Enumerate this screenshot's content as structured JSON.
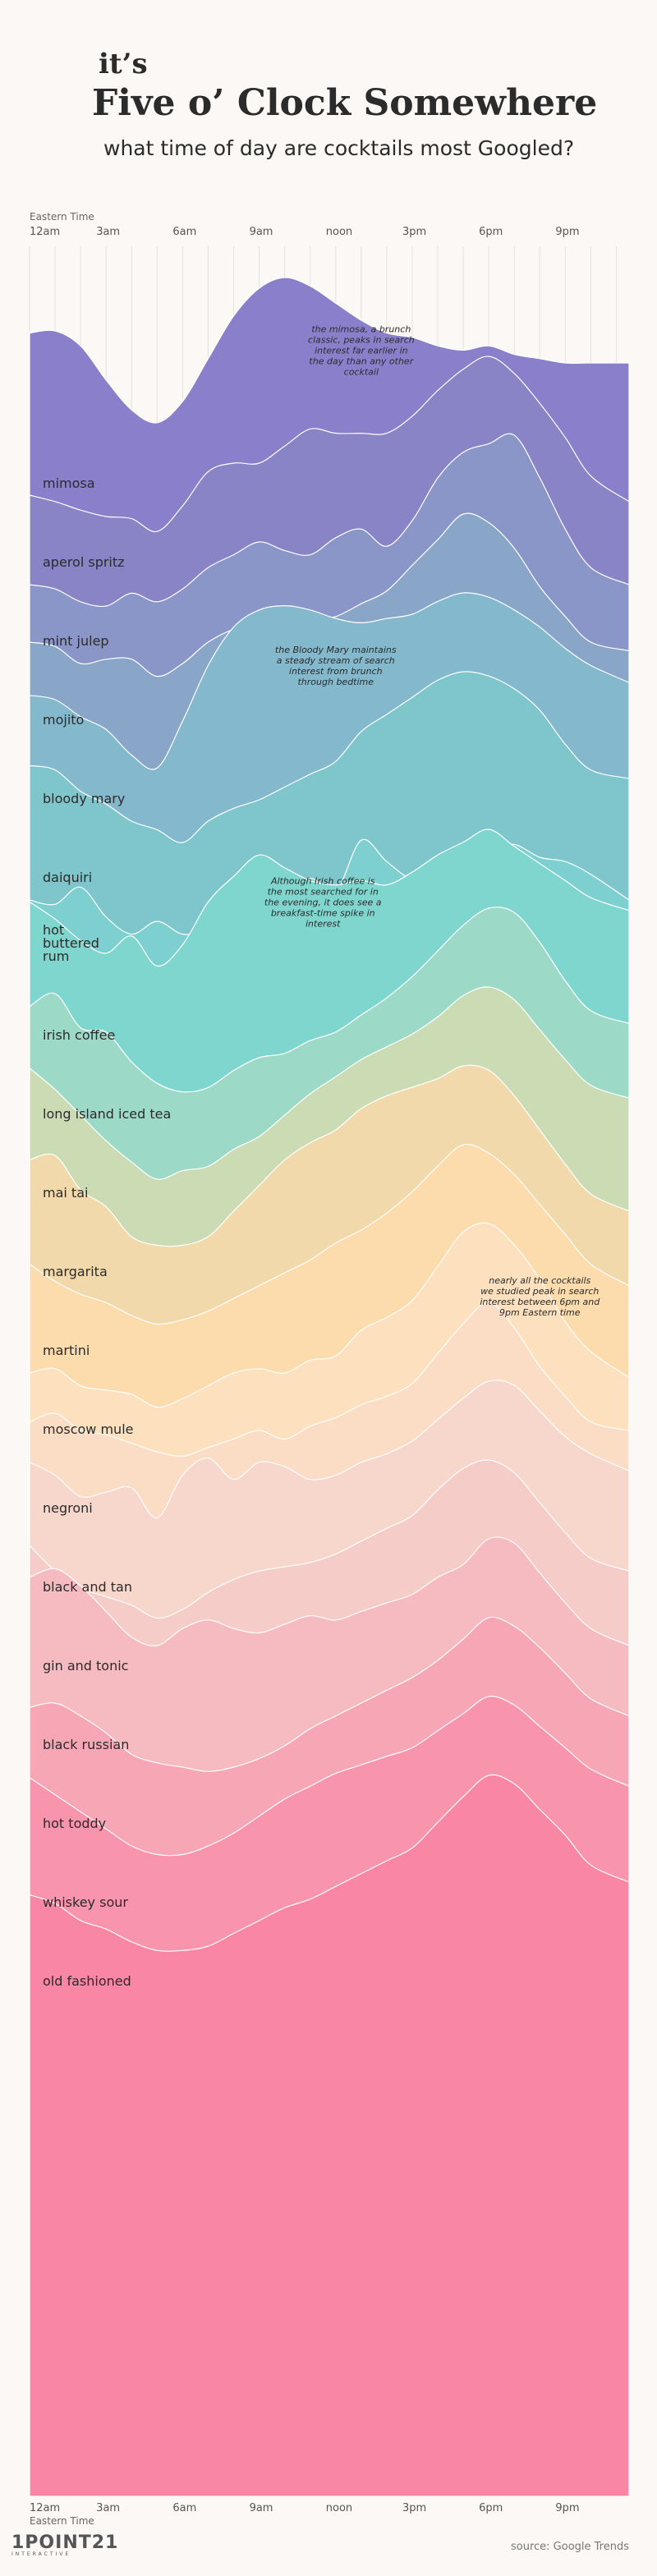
{
  "title_small": "it’s",
  "title_main": "Five o’ Clock Somewhere",
  "subtitle": "what time of day are cocktails most Googled?",
  "source": "source: Google Trends",
  "logo": {
    "text": "1POINT21",
    "tagline": "INTERACTIVE"
  },
  "colors": {
    "background": "#fbf8f6",
    "grid": "#e6e1dd",
    "text": "#2b2b2b"
  },
  "chart_data": {
    "type": "area",
    "style": "ridgeline",
    "x_axis_label": "Eastern Time",
    "x_ticks": [
      "12am",
      "3am",
      "6am",
      "9am",
      "noon",
      "3pm",
      "6pm",
      "9pm"
    ],
    "x_hours": [
      0,
      3,
      6,
      9,
      12,
      15,
      18,
      21
    ],
    "hours": [
      0,
      1,
      2,
      3,
      4,
      5,
      6,
      7,
      8,
      9,
      10,
      11,
      12,
      13,
      14,
      15,
      16,
      17,
      18,
      19,
      20,
      21,
      22,
      23
    ],
    "y_unit": "relative search interest (0-100)",
    "series": [
      {
        "name": "mimosa",
        "color": "#8a7fcb",
        "values": [
          74,
          75,
          68,
          52,
          38,
          32,
          42,
          62,
          82,
          95,
          100,
          96,
          88,
          80,
          74,
          72,
          68,
          66,
          68,
          64,
          62,
          60,
          60,
          60
        ]
      },
      {
        "name": "aperol spritz",
        "color": "#8884c6",
        "values": [
          35,
          32,
          28,
          25,
          24,
          18,
          30,
          46,
          50,
          50,
          58,
          66,
          64,
          64,
          64,
          72,
          84,
          94,
          100,
          92,
          78,
          62,
          44,
          32
        ]
      },
      {
        "name": "mint julep",
        "color": "#8a96c8",
        "values": [
          30,
          28,
          22,
          20,
          26,
          22,
          28,
          38,
          44,
          50,
          46,
          44,
          52,
          56,
          48,
          60,
          80,
          92,
          96,
          100,
          80,
          56,
          38,
          30
        ]
      },
      {
        "name": "mojito",
        "color": "#89a6c8",
        "values": [
          40,
          38,
          30,
          32,
          32,
          24,
          30,
          40,
          46,
          48,
          44,
          50,
          52,
          58,
          64,
          76,
          88,
          100,
          96,
          84,
          66,
          52,
          40,
          36
        ]
      },
      {
        "name": "bloody mary",
        "color": "#84b8cc",
        "values": [
          52,
          50,
          42,
          36,
          24,
          18,
          40,
          66,
          84,
          92,
          94,
          92,
          88,
          86,
          88,
          90,
          96,
          100,
          98,
          92,
          84,
          74,
          66,
          58
        ]
      },
      {
        "name": "daiquiri",
        "color": "#7ec5cc",
        "values": [
          56,
          54,
          44,
          38,
          30,
          26,
          20,
          30,
          36,
          40,
          46,
          52,
          58,
          72,
          80,
          88,
          96,
          100,
          98,
          92,
          82,
          66,
          54,
          50
        ]
      },
      {
        "name": "hot buttered rum",
        "color": "#7dd0cf",
        "values": [
          30,
          28,
          36,
          22,
          14,
          20,
          14,
          16,
          20,
          32,
          28,
          40,
          34,
          58,
          48,
          40,
          44,
          52,
          54,
          56,
          50,
          48,
          42,
          30
        ]
      },
      {
        "name": "irish coffee",
        "color": "#7fd6cf",
        "values": [
          66,
          58,
          48,
          42,
          50,
          36,
          46,
          66,
          78,
          88,
          82,
          76,
          74,
          76,
          74,
          80,
          88,
          94,
          100,
          92,
          84,
          76,
          68,
          62
        ]
      },
      {
        "name": "long island iced tea",
        "color": "#9cd9c7",
        "values": [
          54,
          60,
          44,
          42,
          28,
          18,
          14,
          16,
          24,
          30,
          32,
          38,
          42,
          50,
          58,
          68,
          80,
          92,
          100,
          98,
          84,
          66,
          52,
          46
        ]
      },
      {
        "name": "mai tai",
        "color": "#cbdbb4",
        "values": [
          62,
          52,
          40,
          28,
          18,
          10,
          14,
          16,
          24,
          30,
          40,
          50,
          58,
          66,
          72,
          78,
          86,
          96,
          100,
          94,
          80,
          66,
          54,
          48
        ]
      },
      {
        "name": "margarita",
        "color": "#f2d9ab",
        "values": [
          56,
          58,
          42,
          34,
          20,
          16,
          16,
          20,
          32,
          44,
          56,
          64,
          70,
          80,
          86,
          90,
          94,
          100,
          98,
          86,
          70,
          54,
          40,
          32
        ]
      },
      {
        "name": "martini",
        "color": "#fcdbac",
        "values": [
          44,
          36,
          30,
          26,
          20,
          16,
          18,
          22,
          28,
          34,
          40,
          46,
          54,
          60,
          68,
          78,
          90,
          100,
          96,
          86,
          72,
          58,
          44,
          34
        ]
      },
      {
        "name": "moscow mule",
        "color": "#fde0bd",
        "values": [
          30,
          32,
          24,
          22,
          20,
          14,
          18,
          24,
          30,
          32,
          30,
          36,
          38,
          50,
          56,
          64,
          80,
          96,
          100,
          90,
          74,
          54,
          40,
          28
        ]
      },
      {
        "name": "negroni",
        "color": "#fbdcc4",
        "values": [
          44,
          48,
          40,
          38,
          34,
          30,
          28,
          32,
          36,
          40,
          36,
          42,
          46,
          52,
          56,
          62,
          76,
          90,
          100,
          88,
          70,
          56,
          44,
          40
        ]
      },
      {
        "name": "black and tan",
        "color": "#f7d6cc",
        "values": [
          62,
          56,
          46,
          48,
          50,
          36,
          56,
          64,
          54,
          62,
          60,
          54,
          56,
          62,
          66,
          72,
          82,
          92,
          100,
          98,
          86,
          74,
          66,
          58
        ]
      },
      {
        "name": "gin and tonic",
        "color": "#f5ccc8",
        "values": [
          60,
          48,
          40,
          36,
          32,
          26,
          30,
          38,
          44,
          48,
          50,
          52,
          56,
          62,
          68,
          74,
          86,
          96,
          100,
          94,
          80,
          66,
          54,
          48
        ]
      },
      {
        "name": "black russian",
        "color": "#f6bbc1",
        "values": [
          82,
          86,
          78,
          66,
          54,
          50,
          58,
          62,
          58,
          56,
          60,
          64,
          62,
          66,
          70,
          74,
          82,
          88,
          100,
          98,
          84,
          70,
          58,
          50
        ]
      },
      {
        "name": "hot toddy",
        "color": "#f7a6b6",
        "values": [
          58,
          60,
          54,
          46,
          36,
          32,
          30,
          28,
          30,
          34,
          40,
          48,
          54,
          60,
          66,
          72,
          80,
          90,
          100,
          96,
          86,
          74,
          62,
          54
        ]
      },
      {
        "name": "whiskey sour",
        "color": "#f894ab",
        "values": [
          62,
          54,
          46,
          38,
          30,
          26,
          26,
          30,
          36,
          44,
          52,
          58,
          64,
          68,
          72,
          76,
          84,
          92,
          100,
          96,
          86,
          76,
          66,
          58
        ]
      },
      {
        "name": "old fashioned",
        "color": "#f986a3",
        "values": [
          44,
          40,
          32,
          28,
          22,
          18,
          18,
          20,
          26,
          32,
          38,
          42,
          48,
          54,
          60,
          66,
          78,
          90,
          100,
          96,
          84,
          72,
          58,
          50
        ]
      }
    ],
    "annotations": [
      {
        "text": "the mimosa, a brunch classic, peaks in search interest far earlier in the day than any other cocktail",
        "hour": 13,
        "series": "mimosa"
      },
      {
        "text": "the Bloody Mary maintains a steady stream of search interest from brunch through bedtime",
        "hour": 12,
        "series": "bloody mary"
      },
      {
        "text": "Although Irish coffee is the most searched for in the evening, it does see a breakfast-time spike in interest",
        "hour": 11.5,
        "series": "irish coffee"
      },
      {
        "text": "nearly all the cocktails we studied peak in search interest between 6pm and 9pm Eastern time",
        "hour": 20,
        "series": "moscow mule"
      }
    ]
  }
}
